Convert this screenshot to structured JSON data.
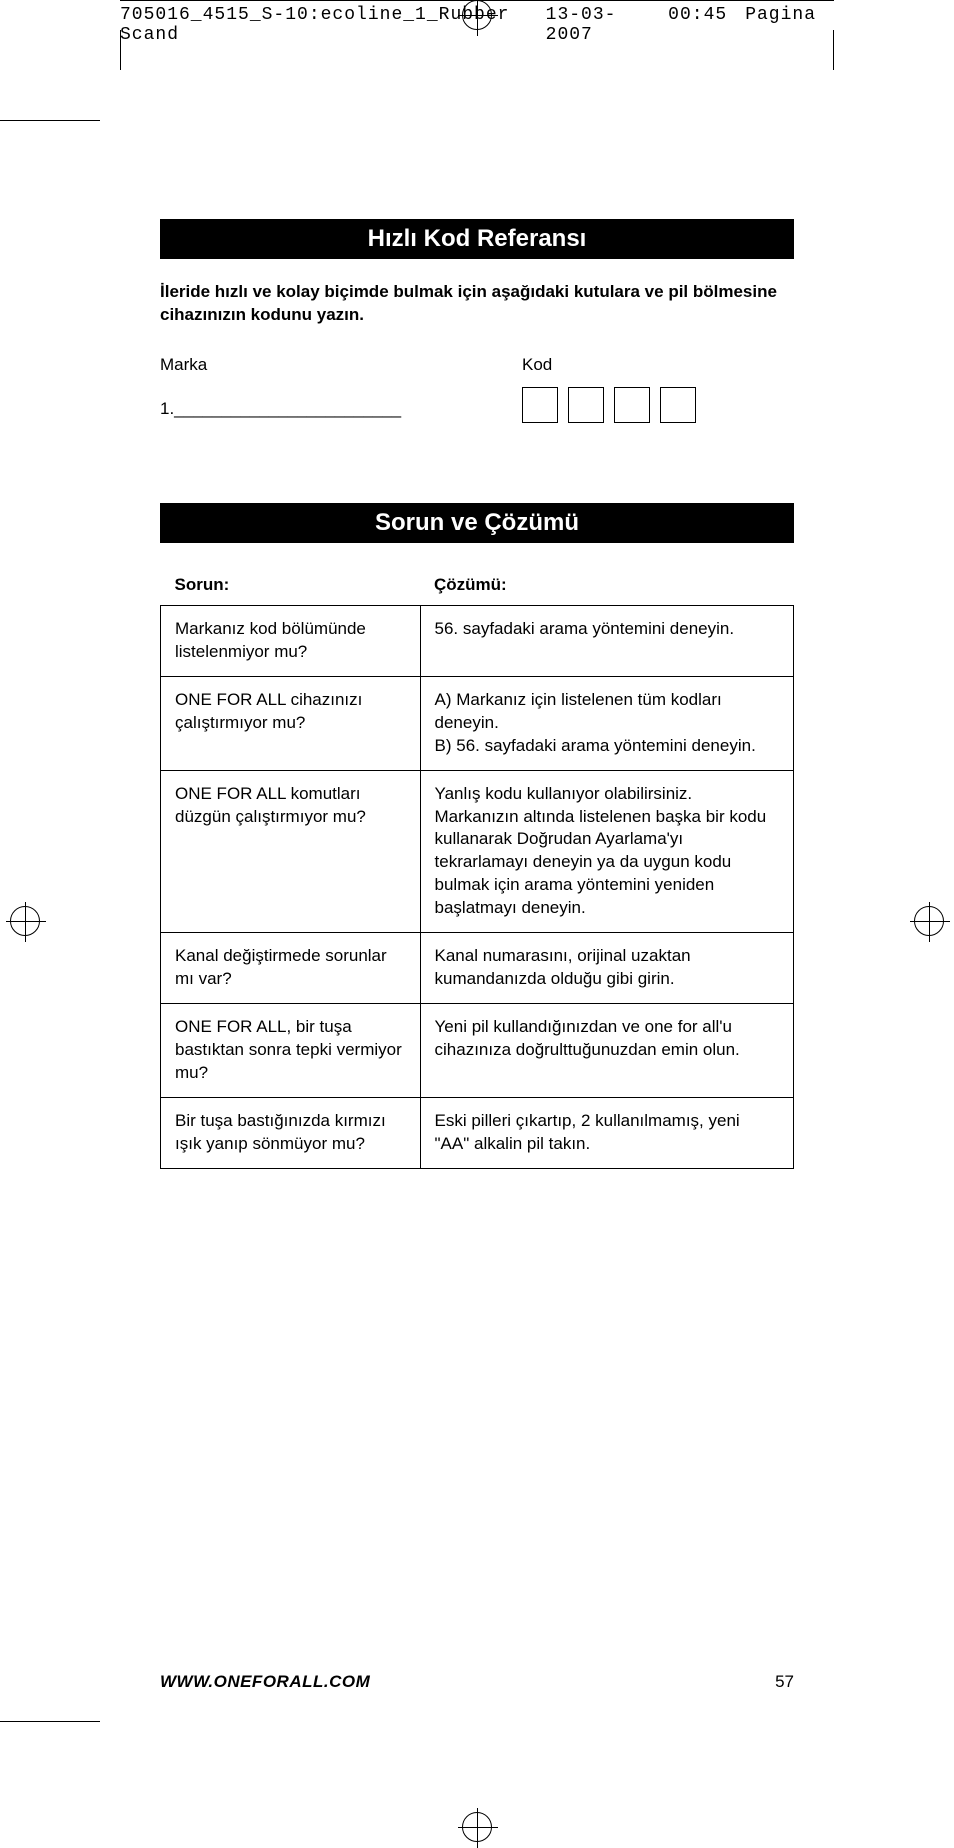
{
  "header": {
    "file_id": "705016_4515_S-10:ecoline_1_Rubber Scand",
    "date": "13-03-2007",
    "time": "00:45",
    "page_word": "Pagina"
  },
  "section_quickref": {
    "title": "Hızlı Kod Referansı",
    "intro": "İleride hızlı ve kolay biçimde bulmak için aşağıdaki kutulara ve pil bölmesine cihazınızın kodunu yazın.",
    "label_brand": "Marka",
    "label_code": "Kod",
    "brand_line": "1.________________________"
  },
  "section_trouble": {
    "title": "Sorun ve Çözümü",
    "col_problem": "Sorun:",
    "col_solution": "Çözümü:",
    "rows": [
      {
        "problem": "Markanız kod bölümünde listelenmiyor mu?",
        "solution": "56. sayfadaki arama yöntemini deneyin."
      },
      {
        "problem": "ONE FOR ALL cihazınızı çalıştırmıyor mu?",
        "solution": "A) Markanız için listelenen tüm kodları deneyin.\nB) 56. sayfadaki arama yöntemini deneyin."
      },
      {
        "problem": "ONE FOR ALL komutları düzgün çalıştırmıyor mu?",
        "solution": "Yanlış kodu kullanıyor olabilirsiniz. Markanızın altında listelenen başka bir kodu kullanarak Doğrudan Ayarlama'yı tekrarlamayı deneyin ya da uygun kodu bulmak için arama yöntemini yeniden başlatmayı deneyin."
      },
      {
        "problem": "Kanal değiştirmede sorunlar mı var?",
        "solution": "Kanal numarasını, orijinal uzaktan kumandanızda olduğu gibi girin."
      },
      {
        "problem": "ONE FOR ALL, bir tuşa bastıktan sonra tepki vermiyor mu?",
        "solution": "Yeni pil kullandığınızdan ve one for all'u cihazınıza doğrulttuğunuzdan emin olun."
      },
      {
        "problem": "Bir tuşa bastığınızda kırmızı ışık yanıp sönmüyor mu?",
        "solution": "Eski pilleri çıkartıp, 2 kullanılmamış, yeni \"AA\" alkalin pil takın."
      }
    ]
  },
  "footer": {
    "url": "WWW.ONEFORALL.COM",
    "page_number": "57"
  },
  "colors": {
    "banner_bg": "#000000",
    "banner_fg": "#ffffff",
    "page_bg": "#ffffff",
    "text": "#000000",
    "border": "#000000"
  }
}
